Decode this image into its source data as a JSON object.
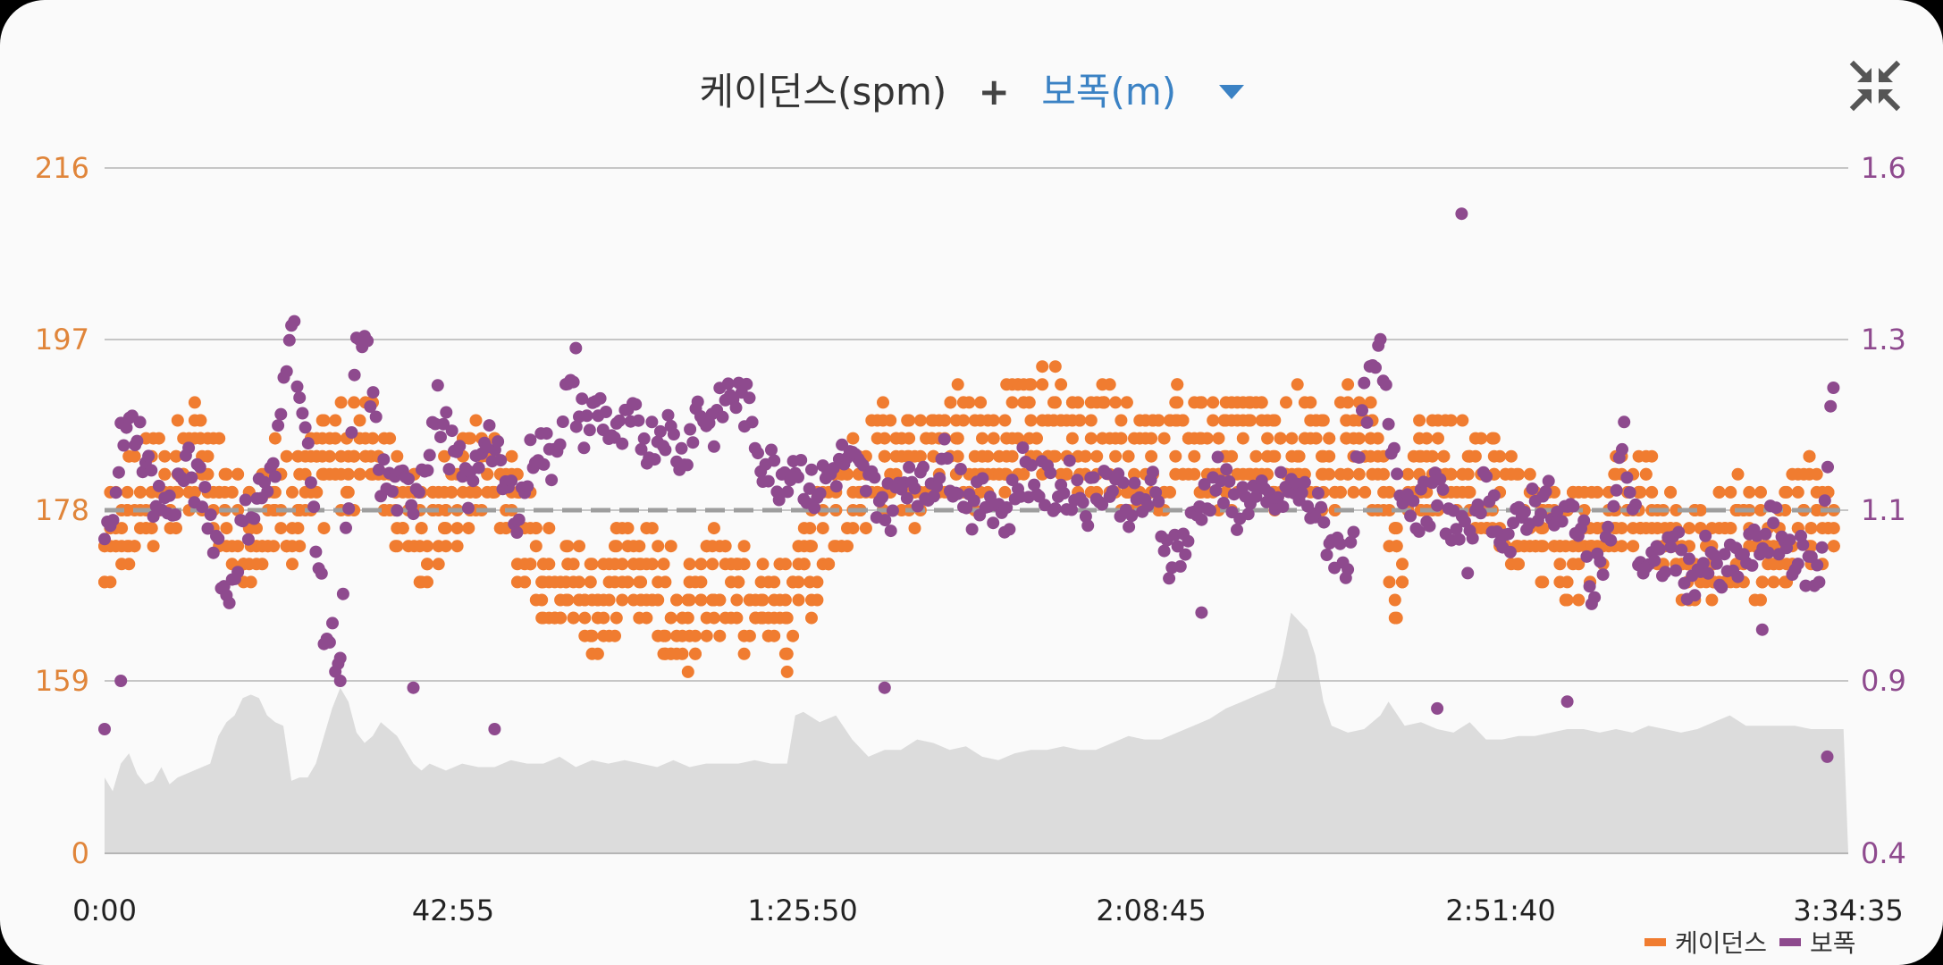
{
  "header": {
    "metric_label": "케이던스(spm)",
    "plus": "+",
    "secondary_label": "보폭(m)"
  },
  "icons": {
    "dropdown": "triangle-down-icon",
    "collapse": "collapse-arrows-icon"
  },
  "colors": {
    "cadence": "#f07c30",
    "stride": "#8e4a8e",
    "left_axis": "#e0853a",
    "right_axis": "#8e4a8e",
    "elevation": "#dcdcdc",
    "average_line": "#9e9e9e",
    "accent": "#3b82c4"
  },
  "chart_data": {
    "type": "scatter",
    "x_ticks": [
      "0:00",
      "42:55",
      "1:25:50",
      "2:08:45",
      "2:51:40",
      "3:34:35"
    ],
    "x_range": [
      "0:00",
      "3:34:35"
    ],
    "y_left": {
      "ticks": [
        "0",
        "159",
        "178",
        "197",
        "216"
      ],
      "range": [
        0,
        216
      ]
    },
    "y_right": {
      "ticks": [
        "0.4",
        "0.9",
        "1.1",
        "1.3",
        "1.6"
      ],
      "range": [
        0.4,
        1.6
      ]
    },
    "grid": true,
    "average_line": {
      "axis": "left",
      "value": 178
    },
    "legend": {
      "position": "bottom-right",
      "items": [
        "케이던스",
        "보폭"
      ]
    },
    "series": [
      {
        "name": "케이던스",
        "axis": "left",
        "points_minutes_spm": [
          [
            0,
            174
          ],
          [
            3,
            178
          ],
          [
            6,
            180
          ],
          [
            9,
            182
          ],
          [
            12,
            184
          ],
          [
            15,
            178
          ],
          [
            18,
            176
          ],
          [
            21,
            180
          ],
          [
            24,
            178
          ],
          [
            27,
            182
          ],
          [
            30,
            184
          ],
          [
            33,
            186
          ],
          [
            36,
            180
          ],
          [
            39,
            174
          ],
          [
            42,
            178
          ],
          [
            45,
            182
          ],
          [
            48,
            184
          ],
          [
            51,
            176
          ],
          [
            54,
            172
          ],
          [
            57,
            170
          ],
          [
            60,
            168
          ],
          [
            63,
            170
          ],
          [
            66,
            172
          ],
          [
            69,
            168
          ],
          [
            72,
            166
          ],
          [
            75,
            170
          ],
          [
            78,
            168
          ],
          [
            81,
            170
          ],
          [
            84,
            166
          ],
          [
            87,
            172
          ],
          [
            90,
            178
          ],
          [
            93,
            182
          ],
          [
            96,
            184
          ],
          [
            99,
            182
          ],
          [
            102,
            184
          ],
          [
            105,
            186
          ],
          [
            108,
            184
          ],
          [
            111,
            186
          ],
          [
            114,
            188
          ],
          [
            117,
            188
          ],
          [
            120,
            184
          ],
          [
            123,
            186
          ],
          [
            126,
            184
          ],
          [
            129,
            182
          ],
          [
            132,
            186
          ],
          [
            135,
            186
          ],
          [
            138,
            184
          ],
          [
            141,
            186
          ],
          [
            144,
            184
          ],
          [
            147,
            186
          ],
          [
            150,
            182
          ],
          [
            153,
            186
          ],
          [
            156,
            184
          ],
          [
            159,
            172
          ],
          [
            162,
            182
          ],
          [
            165,
            184
          ],
          [
            168,
            182
          ],
          [
            171,
            180
          ],
          [
            174,
            178
          ],
          [
            177,
            176
          ],
          [
            180,
            174
          ],
          [
            183,
            176
          ],
          [
            186,
            178
          ],
          [
            189,
            180
          ],
          [
            192,
            176
          ],
          [
            195,
            172
          ],
          [
            198,
            174
          ],
          [
            201,
            176
          ],
          [
            204,
            174
          ],
          [
            207,
            176
          ],
          [
            210,
            178
          ],
          [
            213,
            174
          ]
        ]
      },
      {
        "name": "보폭",
        "axis": "right",
        "points_minutes_m": [
          [
            0,
            1.05
          ],
          [
            2,
            1.18
          ],
          [
            4,
            1.2
          ],
          [
            6,
            1.12
          ],
          [
            8,
            1.1
          ],
          [
            10,
            1.15
          ],
          [
            12,
            1.12
          ],
          [
            14,
            1.06
          ],
          [
            15,
            0.99
          ],
          [
            17,
            1.08
          ],
          [
            19,
            1.12
          ],
          [
            21,
            1.14
          ],
          [
            23,
            1.35
          ],
          [
            24,
            1.24
          ],
          [
            26,
            1.08
          ],
          [
            27,
            0.96
          ],
          [
            29,
            0.93
          ],
          [
            31,
            1.28
          ],
          [
            32,
            1.3
          ],
          [
            34,
            1.14
          ],
          [
            36,
            1.12
          ],
          [
            38,
            1.12
          ],
          [
            40,
            1.18
          ],
          [
            41,
            1.22
          ],
          [
            43,
            1.16
          ],
          [
            45,
            1.12
          ],
          [
            47,
            1.2
          ],
          [
            49,
            1.13
          ],
          [
            51,
            1.1
          ],
          [
            53,
            1.18
          ],
          [
            55,
            1.16
          ],
          [
            57,
            1.24
          ],
          [
            59,
            1.2
          ],
          [
            61,
            1.22
          ],
          [
            63,
            1.18
          ],
          [
            65,
            1.2
          ],
          [
            67,
            1.18
          ],
          [
            69,
            1.2
          ],
          [
            71,
            1.16
          ],
          [
            73,
            1.22
          ],
          [
            75,
            1.2
          ],
          [
            77,
            1.24
          ],
          [
            79,
            1.22
          ],
          [
            81,
            1.16
          ],
          [
            83,
            1.14
          ],
          [
            85,
            1.16
          ],
          [
            87,
            1.12
          ],
          [
            89,
            1.14
          ],
          [
            91,
            1.16
          ],
          [
            93,
            1.14
          ],
          [
            95,
            1.12
          ],
          [
            97,
            1.1
          ],
          [
            99,
            1.15
          ],
          [
            101,
            1.12
          ],
          [
            103,
            1.16
          ],
          [
            105,
            1.14
          ],
          [
            107,
            1.1
          ],
          [
            109,
            1.12
          ],
          [
            111,
            1.09
          ],
          [
            113,
            1.15
          ],
          [
            115,
            1.13
          ],
          [
            117,
            1.12
          ],
          [
            119,
            1.13
          ],
          [
            121,
            1.11
          ],
          [
            123,
            1.14
          ],
          [
            125,
            1.12
          ],
          [
            127,
            1.1
          ],
          [
            129,
            1.12
          ],
          [
            131,
            1.05
          ],
          [
            133,
            1.06
          ],
          [
            135,
            1.11
          ],
          [
            137,
            1.14
          ],
          [
            139,
            1.1
          ],
          [
            141,
            1.12
          ],
          [
            143,
            1.1
          ],
          [
            145,
            1.12
          ],
          [
            147,
            1.12
          ],
          [
            149,
            1.1
          ],
          [
            151,
            1.06
          ],
          [
            153,
            1.04
          ],
          [
            155,
            1.22
          ],
          [
            157,
            1.28
          ],
          [
            158,
            1.2
          ],
          [
            160,
            1.12
          ],
          [
            162,
            1.1
          ],
          [
            164,
            1.12
          ],
          [
            166,
            1.08
          ],
          [
            168,
            1.05
          ],
          [
            169,
            1.13
          ],
          [
            171,
            1.1
          ],
          [
            173,
            1.06
          ],
          [
            175,
            1.1
          ],
          [
            177,
            1.12
          ],
          [
            179,
            1.08
          ],
          [
            181,
            1.1
          ],
          [
            183,
            1.02
          ],
          [
            185,
            1.06
          ],
          [
            187,
            1.18
          ],
          [
            189,
            1.04
          ],
          [
            191,
            1.03
          ],
          [
            193,
            1.06
          ],
          [
            195,
            1.02
          ],
          [
            197,
            1.04
          ],
          [
            199,
            1.02
          ],
          [
            201,
            1.04
          ],
          [
            203,
            1.05
          ],
          [
            205,
            1.08
          ],
          [
            207,
            1.06
          ],
          [
            209,
            1.04
          ],
          [
            211,
            1.02
          ],
          [
            213,
            1.3
          ]
        ]
      }
    ],
    "elevation_profile_minutes": [
      [
        0,
        0.62
      ],
      [
        1,
        0.58
      ],
      [
        2,
        0.66
      ],
      [
        3,
        0.69
      ],
      [
        4,
        0.63
      ],
      [
        5,
        0.6
      ],
      [
        6,
        0.61
      ],
      [
        7,
        0.65
      ],
      [
        8,
        0.6
      ],
      [
        9,
        0.62
      ],
      [
        10,
        0.63
      ],
      [
        11,
        0.64
      ],
      [
        13,
        0.66
      ],
      [
        14,
        0.74
      ],
      [
        15,
        0.78
      ],
      [
        16,
        0.8
      ],
      [
        17,
        0.85
      ],
      [
        18,
        0.86
      ],
      [
        19,
        0.85
      ],
      [
        20,
        0.8
      ],
      [
        21,
        0.78
      ],
      [
        22,
        0.77
      ],
      [
        23,
        0.61
      ],
      [
        24,
        0.62
      ],
      [
        25,
        0.62
      ],
      [
        26,
        0.66
      ],
      [
        27,
        0.74
      ],
      [
        28,
        0.82
      ],
      [
        29,
        0.88
      ],
      [
        30,
        0.84
      ],
      [
        31,
        0.75
      ],
      [
        32,
        0.72
      ],
      [
        33,
        0.74
      ],
      [
        34,
        0.78
      ],
      [
        35,
        0.76
      ],
      [
        36,
        0.74
      ],
      [
        37,
        0.7
      ],
      [
        38,
        0.66
      ],
      [
        39,
        0.64
      ],
      [
        40,
        0.66
      ],
      [
        42,
        0.64
      ],
      [
        44,
        0.66
      ],
      [
        46,
        0.65
      ],
      [
        48,
        0.65
      ],
      [
        50,
        0.67
      ],
      [
        52,
        0.66
      ],
      [
        54,
        0.66
      ],
      [
        56,
        0.68
      ],
      [
        58,
        0.65
      ],
      [
        60,
        0.67
      ],
      [
        62,
        0.66
      ],
      [
        64,
        0.67
      ],
      [
        66,
        0.66
      ],
      [
        68,
        0.65
      ],
      [
        70,
        0.67
      ],
      [
        72,
        0.65
      ],
      [
        74,
        0.66
      ],
      [
        76,
        0.66
      ],
      [
        78,
        0.66
      ],
      [
        80,
        0.67
      ],
      [
        82,
        0.66
      ],
      [
        84,
        0.66
      ],
      [
        85,
        0.8
      ],
      [
        86,
        0.81
      ],
      [
        88,
        0.78
      ],
      [
        90,
        0.8
      ],
      [
        92,
        0.73
      ],
      [
        94,
        0.68
      ],
      [
        96,
        0.7
      ],
      [
        98,
        0.7
      ],
      [
        100,
        0.73
      ],
      [
        102,
        0.72
      ],
      [
        104,
        0.7
      ],
      [
        106,
        0.71
      ],
      [
        108,
        0.68
      ],
      [
        110,
        0.67
      ],
      [
        112,
        0.69
      ],
      [
        114,
        0.7
      ],
      [
        116,
        0.7
      ],
      [
        118,
        0.71
      ],
      [
        120,
        0.7
      ],
      [
        122,
        0.7
      ],
      [
        124,
        0.72
      ],
      [
        126,
        0.74
      ],
      [
        128,
        0.73
      ],
      [
        130,
        0.73
      ],
      [
        132,
        0.75
      ],
      [
        134,
        0.77
      ],
      [
        136,
        0.79
      ],
      [
        138,
        0.82
      ],
      [
        140,
        0.84
      ],
      [
        142,
        0.86
      ],
      [
        144,
        0.88
      ],
      [
        145,
        0.93
      ],
      [
        146,
        0.98
      ],
      [
        147,
        0.97
      ],
      [
        148,
        0.96
      ],
      [
        149,
        0.93
      ],
      [
        150,
        0.84
      ],
      [
        151,
        0.77
      ],
      [
        153,
        0.75
      ],
      [
        155,
        0.76
      ],
      [
        157,
        0.8
      ],
      [
        158,
        0.84
      ],
      [
        160,
        0.77
      ],
      [
        162,
        0.78
      ],
      [
        164,
        0.76
      ],
      [
        166,
        0.75
      ],
      [
        168,
        0.78
      ],
      [
        170,
        0.73
      ],
      [
        172,
        0.73
      ],
      [
        174,
        0.74
      ],
      [
        176,
        0.74
      ],
      [
        178,
        0.75
      ],
      [
        180,
        0.76
      ],
      [
        182,
        0.76
      ],
      [
        184,
        0.75
      ],
      [
        186,
        0.76
      ],
      [
        188,
        0.75
      ],
      [
        190,
        0.77
      ],
      [
        192,
        0.76
      ],
      [
        194,
        0.75
      ],
      [
        196,
        0.76
      ],
      [
        198,
        0.78
      ],
      [
        200,
        0.8
      ],
      [
        202,
        0.77
      ],
      [
        204,
        0.77
      ],
      [
        206,
        0.77
      ],
      [
        208,
        0.77
      ],
      [
        210,
        0.76
      ],
      [
        212,
        0.76
      ],
      [
        214,
        0.76
      ]
    ]
  }
}
